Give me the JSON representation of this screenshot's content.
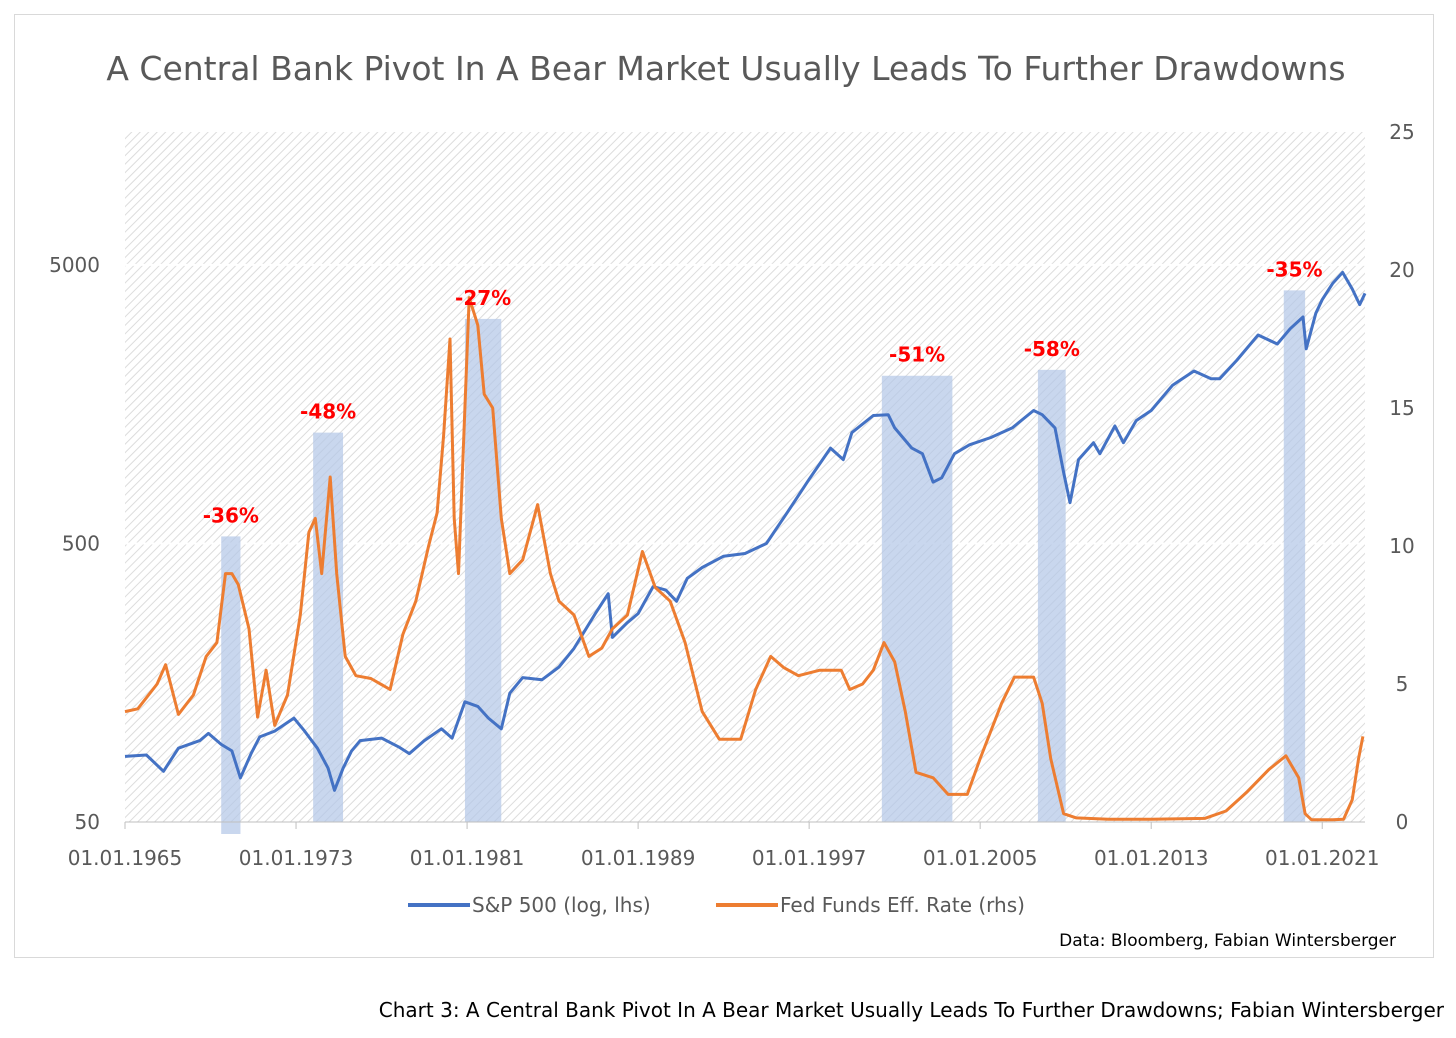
{
  "chart_data": {
    "type": "line",
    "title": "A Central Bank Pivot In A Bear Market Usually Leads To Further Drawdowns",
    "source_note": "Data: Bloomberg, Fabian Wintersberger",
    "x_ticks": [
      "01.01.1965",
      "01.01.1973",
      "01.01.1981",
      "01.01.1989",
      "01.01.1997",
      "01.01.2005",
      "01.01.2013",
      "01.01.2021"
    ],
    "x_range": [
      1965,
      2023.0
    ],
    "y_left": {
      "scale": "log",
      "ticks": [
        "50",
        "500",
        "5000"
      ],
      "range": [
        50,
        15000
      ]
    },
    "y_right": {
      "scale": "linear",
      "ticks": [
        "0",
        "5",
        "10",
        "15",
        "20",
        "25"
      ],
      "range": [
        0,
        25
      ]
    },
    "legend_position": "bottom",
    "grid": "horizontal",
    "colors": {
      "sp500": "#4472c4",
      "fedfunds": "#ed7d31",
      "shade": "#b4c7e7",
      "annotation": "#ff0000"
    },
    "series": [
      {
        "name": "S&P 500 (log, lhs)",
        "axis": "left",
        "points": [
          [
            1965.0,
            86
          ],
          [
            1966.0,
            87
          ],
          [
            1966.8,
            76
          ],
          [
            1967.5,
            92
          ],
          [
            1968.5,
            98
          ],
          [
            1968.9,
            104
          ],
          [
            1969.5,
            95
          ],
          [
            1970.0,
            90
          ],
          [
            1970.4,
            72
          ],
          [
            1970.9,
            88
          ],
          [
            1971.3,
            101
          ],
          [
            1972.0,
            106
          ],
          [
            1972.9,
            118
          ],
          [
            1973.4,
            106
          ],
          [
            1974.0,
            92
          ],
          [
            1974.5,
            78
          ],
          [
            1974.8,
            65
          ],
          [
            1975.2,
            78
          ],
          [
            1975.6,
            90
          ],
          [
            1976.0,
            98
          ],
          [
            1977.0,
            100
          ],
          [
            1977.8,
            93
          ],
          [
            1978.3,
            88
          ],
          [
            1979.0,
            98
          ],
          [
            1979.8,
            108
          ],
          [
            1980.3,
            100
          ],
          [
            1980.9,
            135
          ],
          [
            1981.5,
            130
          ],
          [
            1982.0,
            118
          ],
          [
            1982.6,
            108
          ],
          [
            1983.0,
            145
          ],
          [
            1983.6,
            165
          ],
          [
            1984.5,
            162
          ],
          [
            1985.3,
            180
          ],
          [
            1986.0,
            210
          ],
          [
            1987.0,
            280
          ],
          [
            1987.6,
            330
          ],
          [
            1987.8,
            230
          ],
          [
            1988.5,
            260
          ],
          [
            1989.0,
            280
          ],
          [
            1989.7,
            350
          ],
          [
            1990.3,
            340
          ],
          [
            1990.8,
            310
          ],
          [
            1991.3,
            375
          ],
          [
            1992.0,
            410
          ],
          [
            1993.0,
            450
          ],
          [
            1994.0,
            460
          ],
          [
            1995.0,
            500
          ],
          [
            1996.0,
            650
          ],
          [
            1997.0,
            850
          ],
          [
            1998.0,
            1100
          ],
          [
            1998.6,
            1000
          ],
          [
            1999.0,
            1250
          ],
          [
            2000.0,
            1440
          ],
          [
            2000.7,
            1450
          ],
          [
            2001.0,
            1300
          ],
          [
            2001.8,
            1100
          ],
          [
            2002.3,
            1050
          ],
          [
            2002.8,
            830
          ],
          [
            2003.2,
            860
          ],
          [
            2003.8,
            1050
          ],
          [
            2004.5,
            1130
          ],
          [
            2005.5,
            1200
          ],
          [
            2006.5,
            1300
          ],
          [
            2007.5,
            1500
          ],
          [
            2007.9,
            1450
          ],
          [
            2008.5,
            1300
          ],
          [
            2008.9,
            900
          ],
          [
            2009.2,
            700
          ],
          [
            2009.6,
            1000
          ],
          [
            2010.3,
            1150
          ],
          [
            2010.6,
            1050
          ],
          [
            2011.3,
            1320
          ],
          [
            2011.7,
            1150
          ],
          [
            2012.3,
            1380
          ],
          [
            2013.0,
            1500
          ],
          [
            2014.0,
            1850
          ],
          [
            2015.0,
            2080
          ],
          [
            2015.8,
            1950
          ],
          [
            2016.2,
            1950
          ],
          [
            2017.0,
            2270
          ],
          [
            2018.0,
            2800
          ],
          [
            2018.9,
            2600
          ],
          [
            2019.5,
            2950
          ],
          [
            2020.1,
            3250
          ],
          [
            2020.25,
            2500
          ],
          [
            2020.7,
            3350
          ],
          [
            2021.0,
            3750
          ],
          [
            2021.5,
            4300
          ],
          [
            2021.95,
            4700
          ],
          [
            2022.4,
            4100
          ],
          [
            2022.75,
            3600
          ],
          [
            2023.0,
            3950
          ]
        ]
      },
      {
        "name": "Fed Funds Eff. Rate (rhs)",
        "axis": "right",
        "points": [
          [
            1965.0,
            4.0
          ],
          [
            1965.6,
            4.1
          ],
          [
            1966.5,
            5.0
          ],
          [
            1966.9,
            5.7
          ],
          [
            1967.5,
            3.9
          ],
          [
            1968.2,
            4.6
          ],
          [
            1968.8,
            6.0
          ],
          [
            1969.3,
            6.5
          ],
          [
            1969.7,
            9.0
          ],
          [
            1970.0,
            9.0
          ],
          [
            1970.3,
            8.6
          ],
          [
            1970.8,
            7.0
          ],
          [
            1971.2,
            3.8
          ],
          [
            1971.6,
            5.5
          ],
          [
            1972.0,
            3.5
          ],
          [
            1972.6,
            4.6
          ],
          [
            1973.2,
            7.5
          ],
          [
            1973.6,
            10.5
          ],
          [
            1973.9,
            11.0
          ],
          [
            1974.2,
            9.0
          ],
          [
            1974.6,
            12.5
          ],
          [
            1974.9,
            9.0
          ],
          [
            1975.3,
            6.0
          ],
          [
            1975.8,
            5.3
          ],
          [
            1976.5,
            5.2
          ],
          [
            1977.4,
            4.8
          ],
          [
            1978.0,
            6.8
          ],
          [
            1978.6,
            8.0
          ],
          [
            1979.2,
            10.0
          ],
          [
            1979.6,
            11.2
          ],
          [
            1979.9,
            14.0
          ],
          [
            1980.2,
            17.5
          ],
          [
            1980.4,
            11.0
          ],
          [
            1980.6,
            9.0
          ],
          [
            1980.9,
            15.0
          ],
          [
            1981.1,
            19.0
          ],
          [
            1981.5,
            18.0
          ],
          [
            1981.8,
            15.5
          ],
          [
            1982.2,
            15.0
          ],
          [
            1982.6,
            11.0
          ],
          [
            1983.0,
            9.0
          ],
          [
            1983.6,
            9.5
          ],
          [
            1984.3,
            11.5
          ],
          [
            1984.9,
            9.0
          ],
          [
            1985.3,
            8.0
          ],
          [
            1986.0,
            7.5
          ],
          [
            1986.7,
            6.0
          ],
          [
            1987.3,
            6.3
          ],
          [
            1987.8,
            7.0
          ],
          [
            1988.5,
            7.5
          ],
          [
            1989.2,
            9.8
          ],
          [
            1989.8,
            8.5
          ],
          [
            1990.5,
            8.0
          ],
          [
            1991.2,
            6.5
          ],
          [
            1992.0,
            4.0
          ],
          [
            1992.8,
            3.0
          ],
          [
            1993.8,
            3.0
          ],
          [
            1994.5,
            4.8
          ],
          [
            1995.2,
            6.0
          ],
          [
            1995.8,
            5.6
          ],
          [
            1996.5,
            5.3
          ],
          [
            1997.5,
            5.5
          ],
          [
            1998.5,
            5.5
          ],
          [
            1998.9,
            4.8
          ],
          [
            1999.5,
            5.0
          ],
          [
            2000.0,
            5.5
          ],
          [
            2000.5,
            6.5
          ],
          [
            2001.0,
            5.8
          ],
          [
            2001.5,
            4.0
          ],
          [
            2002.0,
            1.8
          ],
          [
            2002.8,
            1.6
          ],
          [
            2003.5,
            1.0
          ],
          [
            2004.4,
            1.0
          ],
          [
            2005.0,
            2.3
          ],
          [
            2006.0,
            4.3
          ],
          [
            2006.6,
            5.25
          ],
          [
            2007.5,
            5.25
          ],
          [
            2007.9,
            4.3
          ],
          [
            2008.3,
            2.3
          ],
          [
            2008.9,
            0.3
          ],
          [
            2009.5,
            0.15
          ],
          [
            2011.0,
            0.1
          ],
          [
            2013.0,
            0.1
          ],
          [
            2015.5,
            0.13
          ],
          [
            2016.5,
            0.4
          ],
          [
            2017.5,
            1.1
          ],
          [
            2018.5,
            1.9
          ],
          [
            2019.3,
            2.4
          ],
          [
            2019.9,
            1.6
          ],
          [
            2020.2,
            0.3
          ],
          [
            2020.5,
            0.08
          ],
          [
            2021.5,
            0.08
          ],
          [
            2022.0,
            0.1
          ],
          [
            2022.4,
            0.8
          ],
          [
            2022.7,
            2.3
          ],
          [
            2022.9,
            3.1
          ]
        ]
      }
    ],
    "shaded_periods": [
      {
        "start": 1969.5,
        "end": 1970.4,
        "top_left": 530,
        "bottom_left": 40,
        "label": "-36%"
      },
      {
        "start": 1973.8,
        "end": 1975.2,
        "top_left": 1250,
        "bottom_left": 50,
        "label": "-48%"
      },
      {
        "start": 1980.9,
        "end": 1982.6,
        "top_left": 3200,
        "bottom_left": 50,
        "label": "-27%"
      },
      {
        "start": 2000.4,
        "end": 2003.7,
        "top_left": 2000,
        "bottom_left": 50,
        "label": "-51%"
      },
      {
        "start": 2007.7,
        "end": 2009.0,
        "top_left": 2100,
        "bottom_left": 50,
        "label": "-58%"
      },
      {
        "start": 2019.2,
        "end": 2020.2,
        "top_left": 4050,
        "bottom_left": 50,
        "label": "-35%"
      }
    ]
  },
  "caption": "Chart 3: A Central Bank Pivot In A Bear Market Usually Leads To Further Drawdowns; Fabian Wintersberger"
}
